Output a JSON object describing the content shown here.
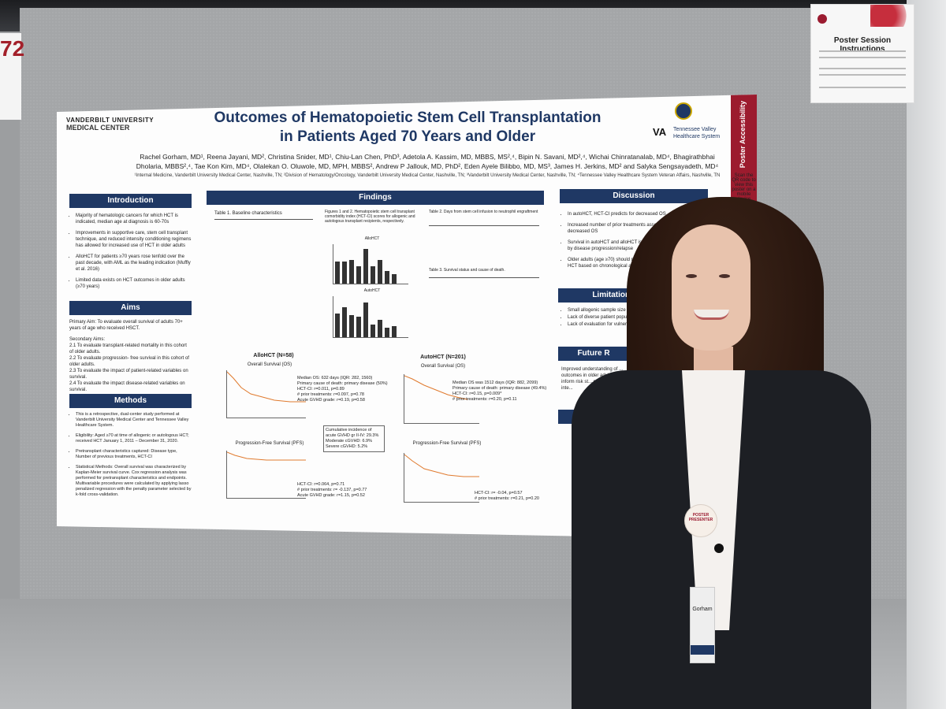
{
  "scene": {
    "poster_number": "72",
    "instructions_card": {
      "title": "Poster Session Instructions"
    }
  },
  "poster": {
    "institution_left": {
      "line1": "VANDERBILT UNIVERSITY",
      "line2": "MEDICAL CENTER"
    },
    "institution_right": {
      "logo": "VA",
      "line1": "Tennessee Valley",
      "line2": "Healthcare System"
    },
    "side_strip": "Poster Accessibility",
    "qr_note": "Scan the QR code to view this poster on a mobile device",
    "title_line1": "Outcomes of Hematopoietic Stem Cell Transplantation",
    "title_line2": "in Patients Aged 70 Years and Older",
    "authors": "Rachel Gorham, MD¹, Reena Jayani, MD², Christina Snider, MD¹, Chiu-Lan Chen, PhD³, Adetola A. Kassim, MD, MBBS, MS²,⁴, Bipin N. Savani, MD²,⁴, Wichai Chinratanalab, MD⁴, Bhagirathbhai Dholaria, MBBS²,⁴, Tae Kon Kim, MD⁴, Olalekan O. Oluwole, MD, MPH, MBBS², Andrew P Jallouk, MD, PhD², Eden Ayele Bilibbo, MD, MS³, James H. Jerkins, MD² and Salyka Sengsayadeth, MD⁴",
    "affiliations": "¹Internal Medicine, Vanderbilt University Medical Center, Nashville, TN; ²Division of Hematology/Oncology, Vanderbilt University Medical Center, Nashville, TN; ³Vanderbilt University Medical Center, Nashville, TN; ⁴Tennessee Valley Healthcare System Veteran Affairs, Nashville, TN",
    "introduction": {
      "header": "Introduction",
      "bullets": [
        "Majority of hematologic cancers for which HCT is indicated, median age at diagnosis is 60-70s",
        "Improvements in supportive care, stem cell transplant technique, and reduced intensity conditioning regimens has allowed for increased use of HCT in older adults",
        "AlloHCT for patients ≥70 years rose tenfold over the past decade, with AML as the leading indication (Muffly et al. 2016)",
        "Limited data exists on HCT outcomes in older adults (≥70 years)"
      ]
    },
    "aims": {
      "header": "Aims",
      "primary": "Primary Aim: To evaluate overall survival of adults 70+ years of age who received HSCT.",
      "secondary_title": "Secondary Aims:",
      "secondary": [
        "2.1 To evaluate transplant-related mortality in this cohort of older adults.",
        "2.2 To evaluate progression- free survival in this cohort of older adults.",
        "2.3 To evaluate the impact of patient-related variables on survival.",
        "2.4 To evaluate the impact disease-related variables on survival."
      ]
    },
    "methods": {
      "header": "Methods",
      "bullets": [
        "This is a retrospective, dual-center study performed at Vanderbilt University Medical Center and Tennessee Valley Healthcare System.",
        "Eligibility: Aged ≥70 at time of allogenic or autologous HCT; received HCT January 1, 2011 – December 31, 2020.",
        "Pretransplant characteristics captured: Disease type, Number of previous treatments, HCT-CI",
        "Statistical Methods: Overall survival was characterized by Kaplan-Meier survival curve. Cox regression analysis was performed for pretransplant characteristics and endpoints. Multivariable procedures were calculated by applying lasso penalized regression with the penalty parameter selected by k-fold cross-validation."
      ]
    },
    "findings": {
      "header": "Findings",
      "table1_caption": "Table 1. Baseline characteristics",
      "fig_caption": "Figures 1 and 2. Hematopoietic stem cell transplant comorbidity index (HCT-CI) scores for allogenic and autologous transplant recipients, respectively.",
      "fig1_label": "AlloHCT",
      "fig2_label": "AutoHCT",
      "table2_caption": "Table 2. Days from stem cell infusion to neutrophil engraftment",
      "table3_caption": "Table 3. Survival status and cause of death.",
      "allo_title": "AlloHCT (N=58)",
      "auto_title": "AutoHCT (N=201)",
      "os_label": "Overall Survival (OS)",
      "pfs_label": "Progression-Free Survival (PFS)",
      "allo_os_stats": [
        "Median OS: 632 days (IQR: 282, 1560)",
        "Primary cause of death: primary disease (50%)",
        "HCT-CI: r=0.011, p=0.89",
        "# prior treatments: r=0.097, p=0.78",
        "Acute GVHD grade: r=0.19, p=0.58"
      ],
      "gvhd_box": [
        "Cumulative incidence of acute GVHD gr II-IV: 29.3%",
        "Moderate cGVHD: 6.9%",
        "Severe cGVHD: 5.2%"
      ],
      "allo_pfs_stats": [
        "HCT-CI: r=0.064, p=0.71",
        "# prior treatments: r= -0.137, p=0.77",
        "Acute GVHD grade: r=1.15, p=0.52"
      ],
      "auto_os_stats": [
        "Median OS was 1512 days (IQR: 882, 2099)",
        "Primary cause of death: primary disease (49.4%)",
        "HCT-CI: r=0.15, p=0.009*",
        "# prior treatments: r=0.20, p=0.11"
      ],
      "auto_pfs_stats": [
        "HCT-CI: r= -0.04, p=0.57",
        "# prior treatments: r=0.21, p=0.20"
      ]
    },
    "discussion": {
      "header": "Discussion",
      "bullets": [
        "In autoHCT, HCT-CI predicts for decreased OS",
        "Increased number of prior treatments associated with decreased OS",
        "Survival in autoHCT and alloHCT is primarily limited by disease progression/relapse",
        "Older adults (age ≥70) should not be precluded from HCT based on chronological age alone"
      ]
    },
    "limitations": {
      "header": "Limitations",
      "bullets": [
        "Small allogenic sample size",
        "Lack of diverse patient population",
        "Lack of evaluation for vulnerabilities"
      ]
    },
    "future": {
      "header": "Future R",
      "text": "Improved understanding of ... outcomes in older adults ... better inform risk st... pre-transplant inte..."
    }
  },
  "person": {
    "pin_text": "POSTER PRESENTER",
    "badge_name": "Gorham"
  }
}
